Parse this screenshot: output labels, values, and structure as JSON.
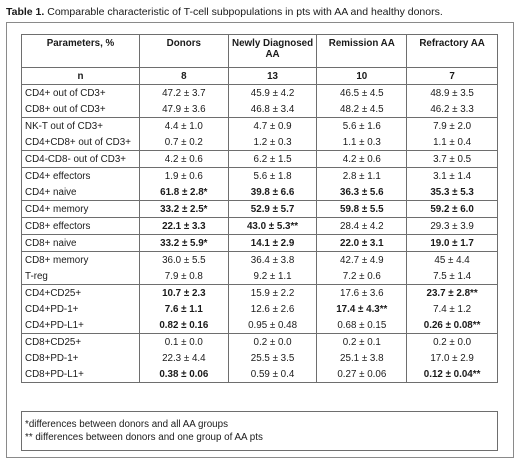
{
  "caption": {
    "label": "Table 1.",
    "text": " Comparable characteristic of T-cell subpopulations in pts with AA and healthy donors."
  },
  "table": {
    "headers": [
      "Parameters, %",
      "Donors",
      "Newly Diagnosed AA",
      "Remission AA",
      "Refractory AA"
    ],
    "n_row": [
      "n",
      "8",
      "13",
      "10",
      "7"
    ],
    "groups": [
      [
        [
          "CD4+ out of CD3+",
          "47.2 ± 3.7",
          "45.9 ± 4.2",
          "46.5 ± 4.5",
          "48.9 ± 3.5"
        ],
        [
          "CD8+ out of CD3+",
          "47.9 ± 3.6",
          "46.8 ± 3.4",
          "48.2 ± 4.5",
          "46.2 ± 3.3"
        ]
      ],
      [
        [
          "NK-T out of CD3+",
          "4.4 ± 1.0",
          "4.7 ± 0.9",
          "5.6 ± 1.6",
          "7.9 ± 2.0"
        ],
        [
          "CD4+CD8+ out of CD3+",
          "0.7 ± 0.2",
          "1.2 ± 0.3",
          "1.1 ± 0.3",
          "1.1 ± 0.4"
        ]
      ],
      [
        [
          "CD4-CD8- out of CD3+",
          "4.2 ± 0.6",
          "6.2 ± 1.5",
          "4.2 ± 0.6",
          "3.7 ± 0.5"
        ]
      ],
      [
        [
          "CD4+ effectors",
          "1.9 ± 0.6",
          "5.6 ± 1.8",
          "2.8 ± 1.1",
          "3.1 ± 1.4"
        ],
        [
          "CD4+ naive",
          "61.8 ± 2.8*",
          "39.8 ± 6.6",
          "36.3 ± 5.6",
          "35.3 ± 5.3"
        ]
      ],
      [
        [
          "CD4+ memory",
          "33.2 ± 2.5*",
          "52.9 ± 5.7",
          "59.8 ± 5.5",
          "59.2 ± 6.0"
        ]
      ],
      [
        [
          "CD8+ effectors",
          "22.1 ± 3.3",
          "43.0 ± 5.3**",
          "28.4 ± 4.2",
          "29.3 ± 3.9"
        ]
      ],
      [
        [
          "CD8+ naive",
          "33.2 ± 5.9*",
          "14.1 ± 2.9",
          "22.0 ± 3.1",
          "19.0 ± 1.7"
        ]
      ],
      [
        [
          "CD8+ memory",
          "36.0 ± 5.5",
          "36.4 ± 3.8",
          "42.7 ± 4.9",
          "45 ± 4.4"
        ],
        [
          "T-reg",
          "7.9 ± 0.8",
          "9.2 ± 1.1",
          "7.2 ± 0.6",
          "7.5 ± 1.4"
        ]
      ],
      [
        [
          "CD4+CD25+",
          "10.7 ± 2.3",
          "15.9 ± 2.2",
          "17.6 ± 3.6",
          "23.7 ± 2.8**"
        ],
        [
          "CD4+PD-1+",
          "7.6 ± 1.1",
          "12.6 ± 2.6",
          "17.4 ± 4.3**",
          "7.4 ± 1.2"
        ],
        [
          "CD4+PD-L1+",
          "0.82 ± 0.16",
          "0.95 ± 0.48",
          "0.68 ± 0.15",
          "0.26 ± 0.08**"
        ]
      ],
      [
        [
          "CD8+CD25+",
          "0.1 ± 0.0",
          "0.2 ± 0.0",
          "0.2 ± 0.1",
          "0.2 ± 0.0"
        ],
        [
          "CD8+PD-1+",
          "22.3 ± 4.4",
          "25.5 ± 3.5",
          "25.1 ± 3.8",
          "17.0 ± 2.9"
        ],
        [
          "CD8+PD-L1+",
          "0.38 ± 0.06",
          "0.59 ± 0.4",
          "0.27 ± 0.06",
          "0.12 ± 0.04**"
        ]
      ]
    ],
    "bold_cells": {
      "CD4+ naive": [
        1,
        2,
        3,
        4
      ],
      "CD4+ memory": [
        1,
        2,
        3,
        4
      ],
      "CD8+ effectors": [
        1,
        2
      ],
      "CD8+ naive": [
        1,
        2,
        3,
        4
      ],
      "CD4+CD25+": [
        1,
        4
      ],
      "CD4+PD-1+": [
        1,
        3
      ],
      "CD4+PD-L1+": [
        1,
        4
      ],
      "CD8+PD-L1+": [
        1,
        4
      ]
    }
  },
  "footnotes": [
    "*differences between donors and all AA groups",
    "** differences between donors and one group of AA pts"
  ]
}
